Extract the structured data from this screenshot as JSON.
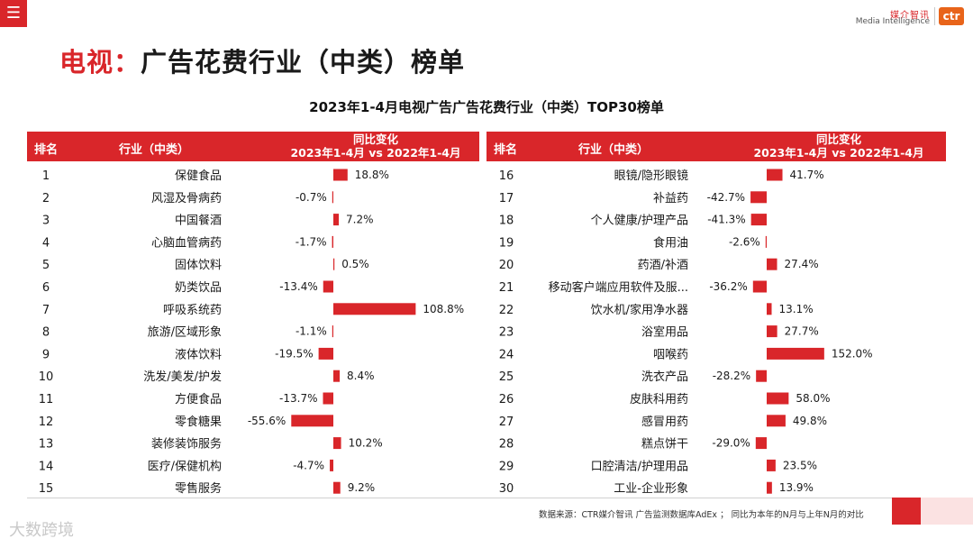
{
  "header": {
    "menu_icon": "☰",
    "brand_cn": "媒介智讯",
    "brand_en": "Media Intelligence",
    "brand_logo": "ctr"
  },
  "page": {
    "title_highlight": "电视：",
    "title_rest": "广告花费行业（中类）榜单",
    "subtitle": "2023年1-4月电视广告广告花费行业（中类）TOP30榜单"
  },
  "table_header": {
    "rank": "排名",
    "industry": "行业（中类）",
    "change_line1": "同比变化",
    "change_line2": "2023年1-4月 vs 2022年1-4月"
  },
  "footer": {
    "source": "数据来源：CTR媒介智讯 广告监测数据库AdEx ； 同比为本年的N月与上年N月的对比",
    "watermark": "大数跨境"
  },
  "colors": {
    "accent": "#d9262a",
    "bar": "#d9262a"
  },
  "chart_data": {
    "type": "bar",
    "title": "2023年1-4月电视广告广告花费行业（中类）TOP30榜单",
    "xlabel": "同比变化 2023年1-4月 vs 2022年1-4月",
    "unit": "%",
    "columns": [
      {
        "ranks": [
          "1",
          "2",
          "3",
          "4",
          "5",
          "6",
          "7",
          "8",
          "9",
          "10",
          "11",
          "12",
          "13",
          "14",
          "15"
        ],
        "categories": [
          "保健食品",
          "风湿及骨病药",
          "中国餐酒",
          "心脑血管病药",
          "固体饮料",
          "奶类饮品",
          "呼吸系统药",
          "旅游/区域形象",
          "液体饮料",
          "洗发/美发/护发",
          "方便食品",
          "零食糖果",
          "装修装饰服务",
          "医疗/保健机构",
          "零售服务"
        ],
        "values": [
          18.8,
          -0.7,
          7.2,
          -1.7,
          0.5,
          -13.4,
          108.8,
          -1.1,
          -19.5,
          8.4,
          -13.7,
          -55.6,
          10.2,
          -4.7,
          9.2
        ],
        "labels": [
          "18.8%",
          "-0.7%",
          "7.2%",
          "-1.7%",
          "0.5%",
          "-13.4%",
          "108.8%",
          "-1.1%",
          "-19.5%",
          "8.4%",
          "-13.7%",
          "-55.6%",
          "10.2%",
          "-4.7%",
          "9.2%"
        ]
      },
      {
        "ranks": [
          "16",
          "17",
          "18",
          "19",
          "20",
          "21",
          "22",
          "23",
          "24",
          "25",
          "26",
          "27",
          "28",
          "29",
          "30"
        ],
        "categories": [
          "眼镜/隐形眼镜",
          "补益药",
          "个人健康/护理产品",
          "食用油",
          "药酒/补酒",
          "移动客户端应用软件及服...",
          "饮水机/家用净水器",
          "浴室用品",
          "咽喉药",
          "洗衣产品",
          "皮肤科用药",
          "感冒用药",
          "糕点饼干",
          "口腔清洁/护理用品",
          "工业-企业形象"
        ],
        "values": [
          41.7,
          -42.7,
          -41.3,
          -2.6,
          27.4,
          -36.2,
          13.1,
          27.7,
          152.0,
          -28.2,
          58.0,
          49.8,
          -29.0,
          23.5,
          13.9
        ],
        "labels": [
          "41.7%",
          "-42.7%",
          "-41.3%",
          "-2.6%",
          "27.4%",
          "-36.2%",
          "13.1%",
          "27.7%",
          "152.0%",
          "-28.2%",
          "58.0%",
          "49.8%",
          "-29.0%",
          "23.5%",
          "13.9%"
        ]
      }
    ]
  }
}
